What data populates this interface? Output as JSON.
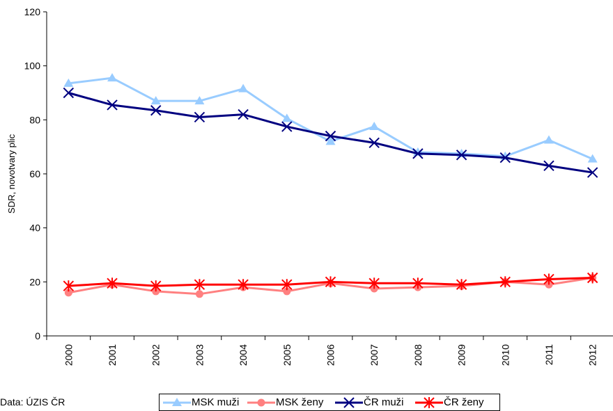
{
  "chart_data": {
    "type": "line",
    "ylabel": "SDR, novotvary plic",
    "xlabel": "",
    "ylim": [
      0,
      120
    ],
    "yticks": [
      0,
      20,
      40,
      60,
      80,
      100,
      120
    ],
    "categories": [
      "2000",
      "2001",
      "2002",
      "2003",
      "2004",
      "2005",
      "2006",
      "2007",
      "2008",
      "2009",
      "2010",
      "2011",
      "2012"
    ],
    "legend_position": "bottom",
    "grid": false,
    "series": [
      {
        "name": "MSK muži",
        "color": "#99ccff",
        "marker": "triangle",
        "values": [
          93.5,
          95.5,
          87,
          87,
          91.5,
          80.5,
          72,
          77.5,
          68,
          67.5,
          66.5,
          72.5,
          65.5
        ]
      },
      {
        "name": "MSK ženy",
        "color": "#ff8080",
        "marker": "circle",
        "values": [
          16,
          19,
          16.5,
          15.5,
          18,
          16.5,
          19.5,
          17.5,
          18,
          18.5,
          20,
          19,
          21.5
        ]
      },
      {
        "name": "ČR muži",
        "color": "#000080",
        "marker": "x",
        "values": [
          90,
          85.5,
          83.5,
          81,
          82,
          77.5,
          74,
          71.5,
          67.5,
          67,
          66,
          63,
          60.5
        ]
      },
      {
        "name": "ČR ženy",
        "color": "#ff0000",
        "marker": "star",
        "values": [
          18.5,
          19.5,
          18.5,
          19,
          19,
          19,
          20,
          19.5,
          19.5,
          19,
          20,
          21,
          21.5
        ]
      }
    ]
  },
  "source_note": "Data: ÚZIS ČR"
}
